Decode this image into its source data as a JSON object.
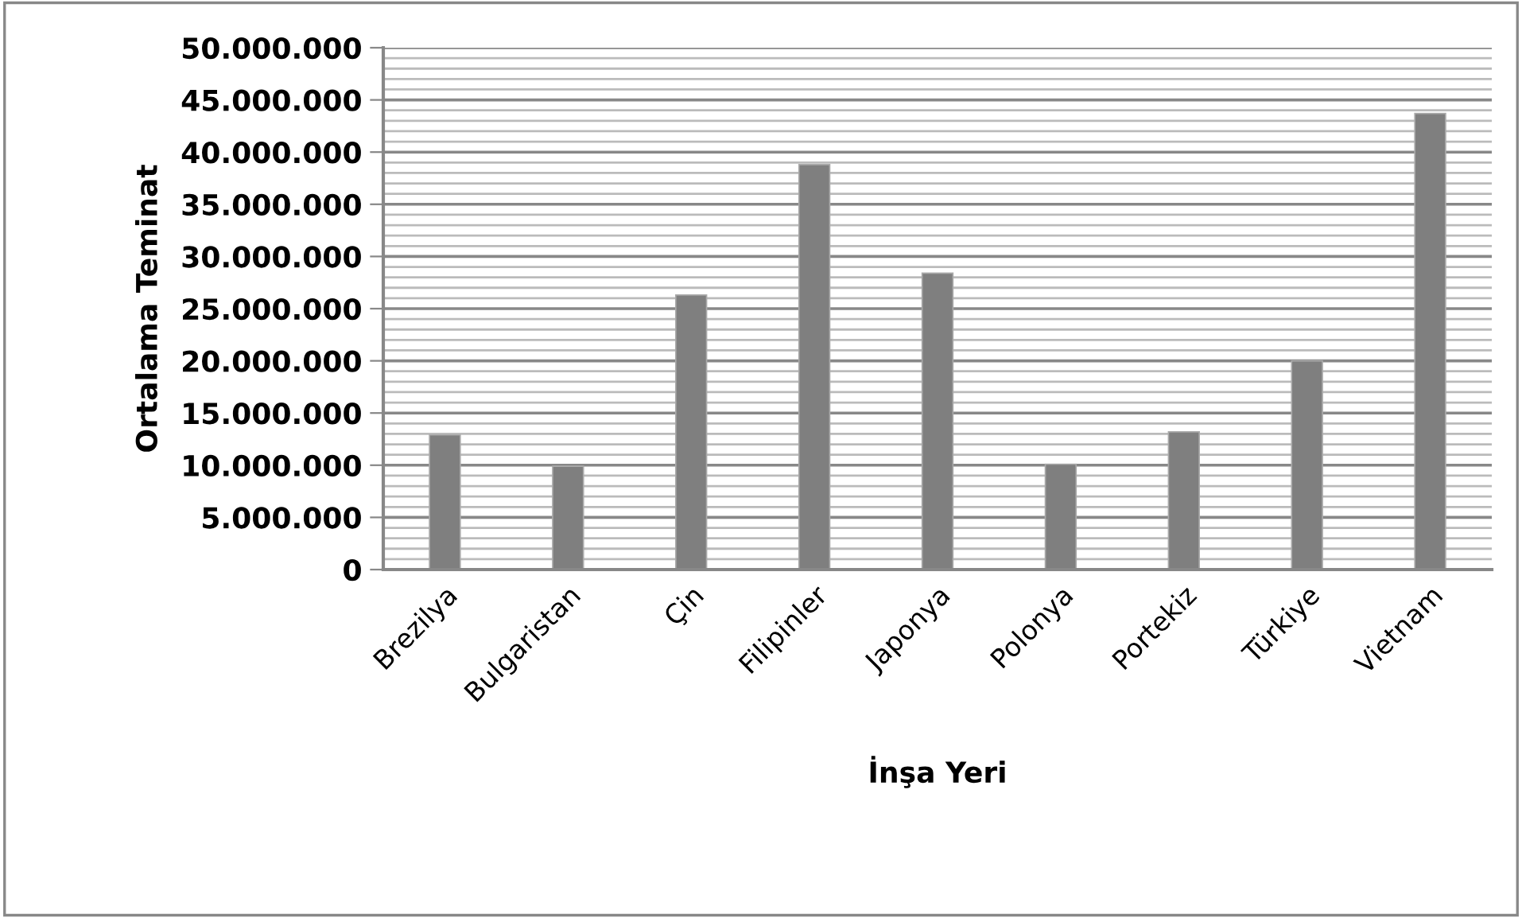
{
  "chart_data": {
    "type": "bar",
    "xlabel": "İnşa Yeri",
    "ylabel": "Ortalama Teminat",
    "categories": [
      "Brezilya",
      "Bulgaristan",
      "Çin",
      "Filipinler",
      "Japonya",
      "Polonya",
      "Portekiz",
      "Türkiye",
      "Vietnam"
    ],
    "values": [
      12900000,
      9900000,
      26300000,
      38800000,
      28400000,
      10100000,
      13200000,
      20000000,
      43700000
    ],
    "color": "#7f7f7f",
    "ylim": [
      0,
      50000000
    ],
    "yticks": [
      {
        "value": 0,
        "label": "0"
      },
      {
        "value": 5000000,
        "label": "5.000.000"
      },
      {
        "value": 10000000,
        "label": "10.000.000"
      },
      {
        "value": 15000000,
        "label": "15.000.000"
      },
      {
        "value": 20000000,
        "label": "20.000.000"
      },
      {
        "value": 25000000,
        "label": "25.000.000"
      },
      {
        "value": 30000000,
        "label": "30.000.000"
      },
      {
        "value": 35000000,
        "label": "35.000.000"
      },
      {
        "value": 40000000,
        "label": "40.000.000"
      },
      {
        "value": 45000000,
        "label": "45.000.000"
      },
      {
        "value": 50000000,
        "label": "50.000.000"
      }
    ],
    "grid": "y",
    "legend": false
  }
}
